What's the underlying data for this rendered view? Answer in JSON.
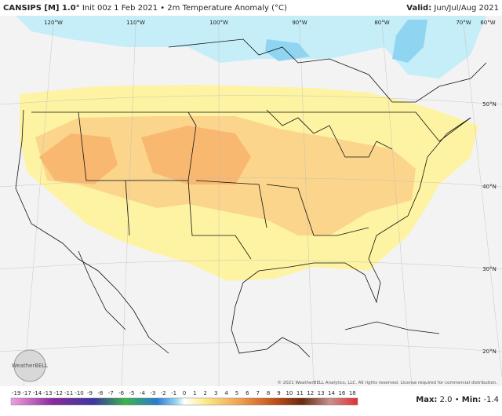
{
  "header": {
    "title_bold": "CANSIPS [M] 1.0°",
    "title_rest": "Init 00z 1 Feb 2021 • 2m Temperature Anomaly (°C)",
    "valid_bold": "Valid:",
    "valid_rest": "Jun/Jul/Aug 2021"
  },
  "map": {
    "lon_labels": [
      "120°W",
      "110°W",
      "100°W",
      "90°W",
      "80°W",
      "70°W",
      "60°W"
    ],
    "lat_labels": [
      "50°N",
      "40°N",
      "30°N",
      "20°N"
    ],
    "logo": "WeatherBELL",
    "copyright": "© 2021 WeatherBELL Analytics, LLC. All rights reserved. License required for commercial distribution."
  },
  "colorbar": {
    "labels": [
      "-19",
      "-17",
      "-14",
      "-13",
      "-12",
      "-11",
      "-10",
      "-9",
      "-8",
      "-7",
      "-6",
      "-5",
      "-4",
      "-3",
      "-2",
      "-1",
      "0",
      "1",
      "2",
      "3",
      "4",
      "5",
      "6",
      "7",
      "8",
      "9",
      "10",
      "11",
      "12",
      "13",
      "14",
      "16",
      "18"
    ]
  },
  "stats": {
    "max_label": "Max:",
    "max": "2.0",
    "sep": "•",
    "min_label": "Min:",
    "min": "-1.4"
  }
}
